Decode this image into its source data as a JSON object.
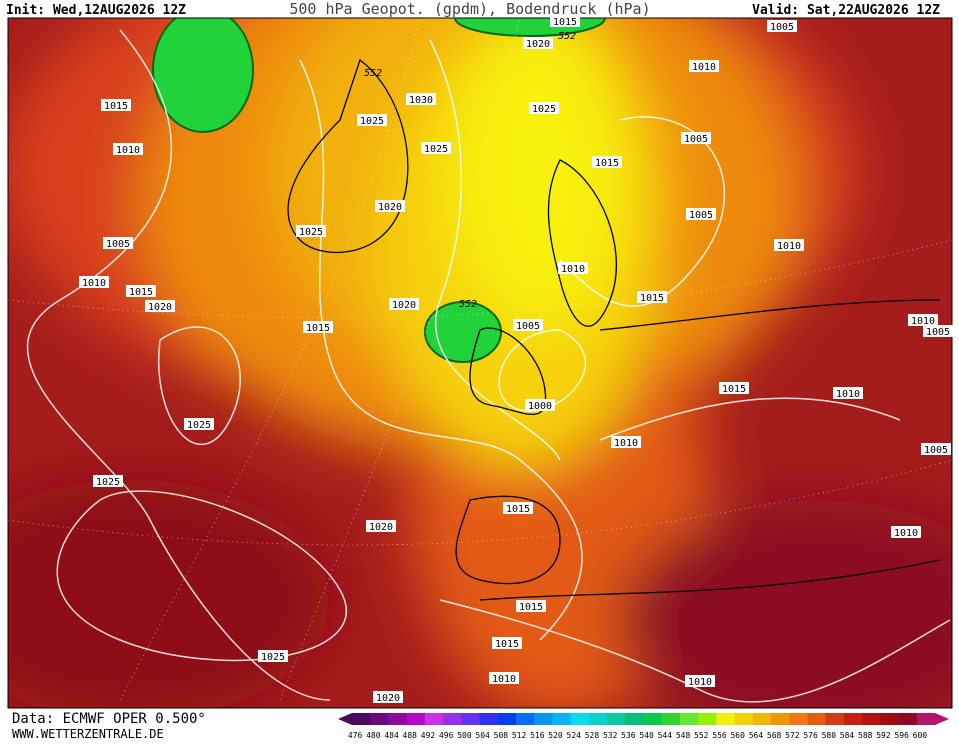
{
  "header": {
    "init": "Init: Wed,12AUG2026 12Z",
    "title": "500 hPa Geopot. (gpdm), Bodendruck (hPa)",
    "valid": "Valid: Sat,22AUG2026 12Z"
  },
  "isobar_labels": [
    "1005",
    "1015",
    "1020",
    "1010",
    "1030",
    "1025",
    "1015",
    "1010",
    "1025",
    "1025",
    "1005",
    "1015",
    "1020",
    "1005",
    "1025",
    "1005",
    "1010",
    "1010",
    "1015",
    "1010",
    "1020",
    "1015",
    "1020",
    "1005",
    "1015",
    "1010",
    "1005",
    "1015",
    "1010",
    "1000",
    "1025",
    "1010",
    "1005",
    "1025",
    "1015",
    "1020",
    "1010",
    "1015",
    "1015",
    "1025",
    "1010",
    "1010",
    "1020"
  ],
  "height_labels": [
    "552",
    "552",
    "552"
  ],
  "footer": {
    "data": "Data: ECMWF OPER 0.500°",
    "site": "WWW.WETTERZENTRALE.DE"
  },
  "scale": {
    "labels": [
      "476",
      "480",
      "484",
      "488",
      "492",
      "496",
      "500",
      "504",
      "508",
      "512",
      "516",
      "520",
      "524",
      "528",
      "532",
      "536",
      "540",
      "544",
      "548",
      "552",
      "556",
      "560",
      "564",
      "568",
      "572",
      "576",
      "580",
      "584",
      "588",
      "592",
      "596",
      "600"
    ],
    "colors": [
      "#4b0a5a",
      "#6a0a80",
      "#8c0aa0",
      "#b40ac8",
      "#c832e6",
      "#9632e6",
      "#6432f0",
      "#3232f0",
      "#0a3cf0",
      "#0a6ef0",
      "#0a96f0",
      "#0ab4f0",
      "#0adcf0",
      "#0ad2c8",
      "#0ac8a0",
      "#0abe78",
      "#0ac850",
      "#32d232",
      "#64e632",
      "#96f00a",
      "#f0f00a",
      "#f0d20a",
      "#f0b40a",
      "#f0960a",
      "#f07814",
      "#e65a14",
      "#d23c14",
      "#c81e14",
      "#b41414",
      "#a00a14",
      "#8c0a28",
      "#b4146e"
    ]
  }
}
